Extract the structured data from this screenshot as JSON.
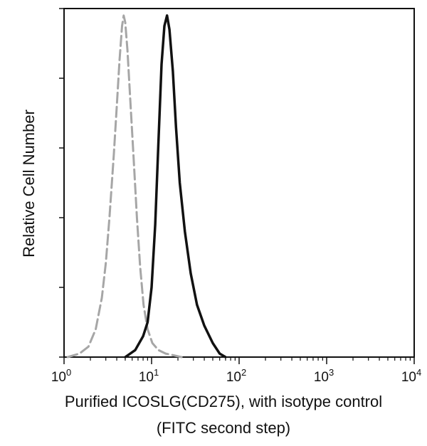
{
  "chart_data": {
    "type": "line",
    "title": "",
    "xlabel": "Purified ICOSLG(CD275), with isotype control",
    "xlabel_line2": "(FITC second step)",
    "ylabel": "Relative Cell Number",
    "x_scale": "log",
    "xlim": [
      1,
      10000
    ],
    "ylim": [
      0,
      100
    ],
    "x_ticks": [
      {
        "base": "10",
        "exp": "0",
        "value": 1
      },
      {
        "base": "10",
        "exp": "1",
        "value": 10
      },
      {
        "base": "10",
        "exp": "2",
        "value": 100
      },
      {
        "base": "10",
        "exp": "3",
        "value": 1000
      },
      {
        "base": "10",
        "exp": "4",
        "value": 10000
      }
    ],
    "y_ticks": [
      0,
      20,
      40,
      60,
      80,
      100
    ],
    "grid": false,
    "legend": "none",
    "series": [
      {
        "style": "dashed",
        "color": "#a6a6a6",
        "x": [
          1.1,
          1.5,
          1.9,
          2.3,
          2.7,
          3.0,
          3.3,
          3.7,
          4.0,
          4.3,
          4.6,
          4.8,
          5.0,
          5.3,
          5.7,
          6.2,
          6.8,
          7.4,
          8.1,
          9.0,
          10.2,
          12.0,
          14.5,
          18.0,
          22.0
        ],
        "y": [
          0,
          1,
          3,
          8,
          17,
          27,
          40,
          58,
          72,
          85,
          95,
          98,
          96,
          88,
          74,
          58,
          40,
          26,
          15,
          8,
          4,
          2,
          1,
          0.5,
          0
        ]
      },
      {
        "style": "solid",
        "color": "#111111",
        "x": [
          5.0,
          6.5,
          8.0,
          9.0,
          10.0,
          11.0,
          12.0,
          13.0,
          14.0,
          15.0,
          16.0,
          17.5,
          19.0,
          21.0,
          24.0,
          28.0,
          33.0,
          40.0,
          50.0,
          60.0,
          70.0
        ],
        "y": [
          0,
          2,
          6,
          10,
          20,
          38,
          62,
          84,
          95,
          98,
          94,
          82,
          66,
          50,
          36,
          24,
          15,
          9,
          4,
          1,
          0
        ]
      }
    ]
  },
  "colors": {
    "axis": "#111111",
    "background": "#ffffff"
  }
}
